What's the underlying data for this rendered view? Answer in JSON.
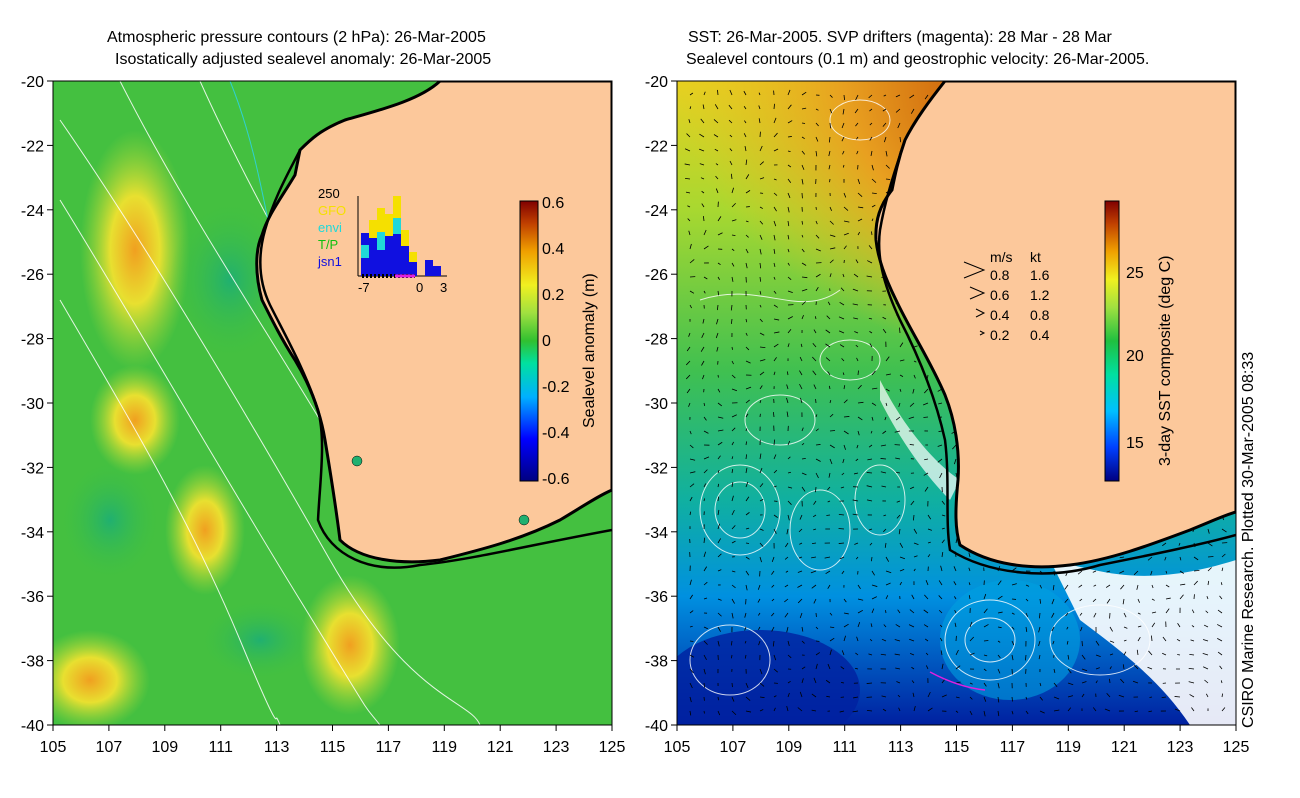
{
  "left_panel": {
    "title_line1": "Atmospheric pressure contours (2 hPa): 26-Mar-2005",
    "title_line2": "Isostatically adjusted sealevel anomaly: 26-Mar-2005",
    "x_ticks": [
      "105",
      "107",
      "109",
      "111",
      "113",
      "115",
      "117",
      "119",
      "121",
      "123",
      "125"
    ],
    "y_ticks": [
      "-20",
      "-22",
      "-24",
      "-26",
      "-28",
      "-30",
      "-32",
      "-34",
      "-36",
      "-38",
      "-40"
    ],
    "colorbar_label": "Sealevel anomaly (m)",
    "colorbar_ticks": [
      "0.6",
      "0.4",
      "0.2",
      "0",
      "-0.2",
      "-0.4",
      "-0.6"
    ],
    "inset": {
      "ymax_label": "250",
      "legend": [
        {
          "label": "GFO",
          "color": "#f5e000"
        },
        {
          "label": "envi",
          "color": "#20d8d8"
        },
        {
          "label": "T/P",
          "color": "#10c010"
        },
        {
          "label": "jsn1",
          "color": "#1010e0"
        }
      ],
      "x_ticks": [
        "-7",
        "0",
        "3"
      ]
    }
  },
  "right_panel": {
    "title_line1": "SST: 26-Mar-2005. SVP drifters (magenta): 28 Mar - 28 Mar",
    "title_line2": "Sealevel contours (0.1 m) and geostrophic velocity: 26-Mar-2005.",
    "x_ticks": [
      "105",
      "107",
      "109",
      "111",
      "113",
      "115",
      "117",
      "119",
      "121",
      "123",
      "125"
    ],
    "y_ticks": [
      "-20",
      "-22",
      "-24",
      "-26",
      "-28",
      "-30",
      "-32",
      "-34",
      "-36",
      "-38",
      "-40"
    ],
    "colorbar_label": "3-day SST composite (deg C)",
    "colorbar_ticks": [
      "25",
      "20",
      "15"
    ],
    "velocity_legend": {
      "header_ms": "m/s",
      "header_kt": "kt",
      "rows": [
        {
          "ms": "0.8",
          "kt": "1.6"
        },
        {
          "ms": "0.6",
          "kt": "1.2"
        },
        {
          "ms": "0.4",
          "kt": "0.8"
        },
        {
          "ms": "0.2",
          "kt": "0.4"
        }
      ]
    }
  },
  "credit": "CSIRO Marine Research. Plotted 30-Mar-2005 08:33",
  "colors": {
    "land": "#fcc89b",
    "coast": "#000000"
  }
}
